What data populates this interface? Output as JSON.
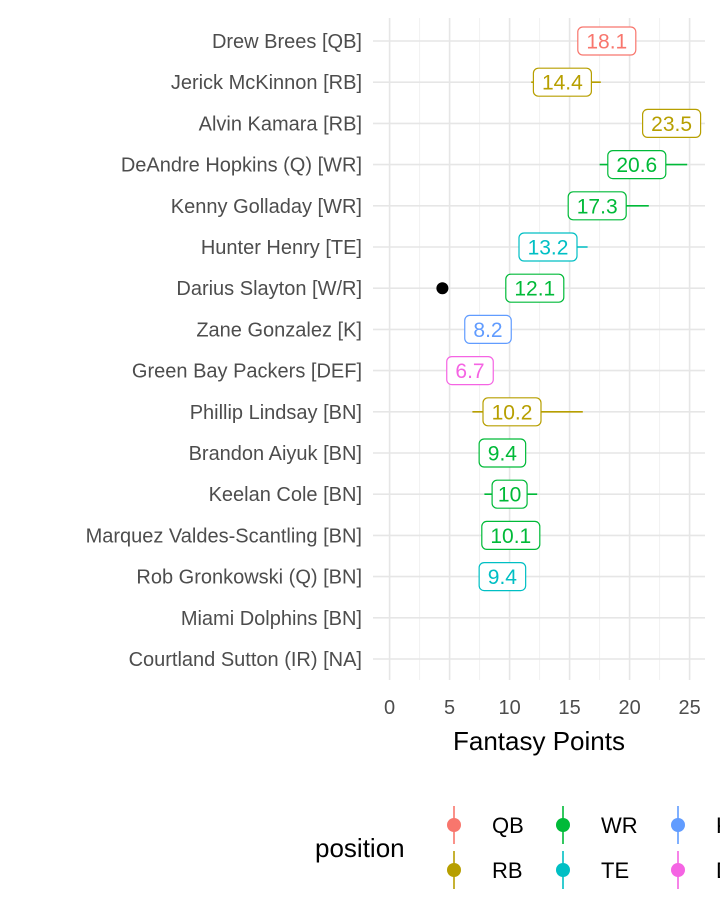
{
  "chart_data": {
    "type": "scatter",
    "xlabel": "Fantasy Points",
    "xlim": [
      -1.5,
      26.5
    ],
    "xticks": [
      0,
      5,
      10,
      15,
      20,
      25
    ],
    "grid": true,
    "legend": {
      "title": "position",
      "placement": "bottom",
      "entries": [
        {
          "key": "QB",
          "label": "QB",
          "color": "#F8766D"
        },
        {
          "key": "RB",
          "label": "RB",
          "color": "#B79F00"
        },
        {
          "key": "WR",
          "label": "WR",
          "color": "#00BA38"
        },
        {
          "key": "TE",
          "label": "TE",
          "color": "#00BFC4"
        },
        {
          "key": "K",
          "label": "K",
          "color": "#619CFF"
        },
        {
          "key": "DEF",
          "label": "DEF",
          "color": "#F564E3"
        }
      ]
    },
    "players": [
      {
        "name": "Drew Brees [QB]",
        "position": "QB",
        "points": 18.1,
        "label": "18.1",
        "low": 17.0,
        "high": 19.8
      },
      {
        "name": "Jerick McKinnon [RB]",
        "position": "RB",
        "points": 14.4,
        "label": "14.4",
        "low": 11.8,
        "high": 17.6
      },
      {
        "name": "Alvin Kamara [RB]",
        "position": "RB",
        "points": 23.5,
        "label": "23.5",
        "low": 22.2,
        "high": 24.8
      },
      {
        "name": "DeAndre Hopkins (Q) [WR]",
        "position": "WR",
        "points": 20.6,
        "label": "20.6",
        "low": 17.5,
        "high": 24.8
      },
      {
        "name": "Kenny Golladay [WR]",
        "position": "WR",
        "points": 17.3,
        "label": "17.3",
        "low": 15.5,
        "high": 21.6
      },
      {
        "name": "Hunter Henry [TE]",
        "position": "TE",
        "points": 13.2,
        "label": "13.2",
        "low": 11.5,
        "high": 16.5
      },
      {
        "name": "Darius Slayton [W/R]",
        "position": "WR",
        "points": 12.1,
        "label": "12.1",
        "low": 10.5,
        "high": 13.8,
        "other_point": 4.4
      },
      {
        "name": "Zane Gonzalez [K]",
        "position": "K",
        "points": 8.2,
        "label": "8.2",
        "low": 7.2,
        "high": 9.2
      },
      {
        "name": "Green Bay Packers [DEF]",
        "position": "DEF",
        "points": 6.7,
        "label": "6.7",
        "low": 5.6,
        "high": 7.8
      },
      {
        "name": "Phillip Lindsay [BN]",
        "position": "RB",
        "points": 10.2,
        "label": "10.2",
        "low": 6.9,
        "high": 16.1
      },
      {
        "name": "Brandon Aiyuk [BN]",
        "position": "WR",
        "points": 9.4,
        "label": "9.4",
        "low": 8.2,
        "high": 10.6
      },
      {
        "name": "Keelan Cole [BN]",
        "position": "WR",
        "points": 10.0,
        "label": "10",
        "low": 7.9,
        "high": 12.3
      },
      {
        "name": "Marquez Valdes-Scantling [BN]",
        "position": "WR",
        "points": 10.1,
        "label": "10.1",
        "low": 9.0,
        "high": 11.2
      },
      {
        "name": "Rob Gronkowski (Q) [BN]",
        "position": "TE",
        "points": 9.4,
        "label": "9.4",
        "low": 8.4,
        "high": 10.4
      },
      {
        "name": "Miami Dolphins [BN]",
        "position": null,
        "points": null,
        "label": ""
      },
      {
        "name": "Courtland Sutton (IR) [NA]",
        "position": null,
        "points": null,
        "label": ""
      }
    ]
  }
}
